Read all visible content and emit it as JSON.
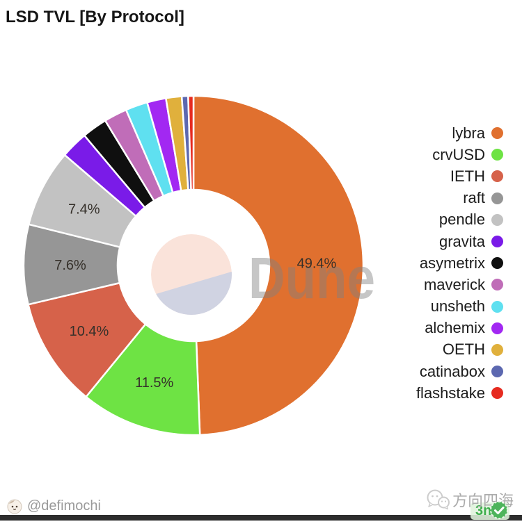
{
  "page": {
    "title": "LSD TVL [By Protocol]",
    "watermark": {
      "brand": "Dune"
    },
    "footer": {
      "author_handle": "@defimochi",
      "wechat_name": "方向四海",
      "badge_text": "3n"
    }
  },
  "colors": {
    "title_text": "#161616",
    "legend_text": "#1c1c1c",
    "pct_label_text": "#35302a",
    "footer_text": "#9a9a9a",
    "badge_green": "#3fae4d",
    "badge_bg": "#e1f2dc",
    "bottom_bar": "#2d2d2d",
    "watermark_peach": "#fae3da",
    "watermark_lavender": "#d0d3e2",
    "watermark_text_gray": "rgba(128,128,128,0.45)"
  },
  "chart_data": {
    "type": "pie",
    "subtype": "donut",
    "title": "LSD TVL [By Protocol]",
    "start_angle_deg": 0,
    "direction": "clockwise",
    "legend_position": "right",
    "percent_labels_shown_for_values_gte": 7,
    "series": [
      {
        "name": "lybra",
        "value": 49.4,
        "color": "#e0702f",
        "labeled": true
      },
      {
        "name": "crvUSD",
        "value": 11.5,
        "color": "#6ee344",
        "labeled": true
      },
      {
        "name": "IETH",
        "value": 10.4,
        "color": "#d6624a",
        "labeled": true
      },
      {
        "name": "raft",
        "value": 7.6,
        "color": "#969696",
        "labeled": true
      },
      {
        "name": "pendle",
        "value": 7.4,
        "color": "#c2c2c2",
        "labeled": true
      },
      {
        "name": "gravita",
        "value": 2.6,
        "color": "#7a1be8",
        "labeled": false
      },
      {
        "name": "asymetrix",
        "value": 2.4,
        "color": "#0f0f0f",
        "labeled": false
      },
      {
        "name": "maverick",
        "value": 2.2,
        "color": "#c06db8",
        "labeled": false
      },
      {
        "name": "unsheth",
        "value": 2.1,
        "color": "#5fe0f0",
        "labeled": false
      },
      {
        "name": "alchemix",
        "value": 1.8,
        "color": "#a228f2",
        "labeled": false
      },
      {
        "name": "OETH",
        "value": 1.5,
        "color": "#e0b03c",
        "labeled": false
      },
      {
        "name": "catinabox",
        "value": 0.6,
        "color": "#5c68b0",
        "labeled": false
      },
      {
        "name": "flashstake",
        "value": 0.5,
        "color": "#e62b20",
        "labeled": false
      }
    ]
  }
}
